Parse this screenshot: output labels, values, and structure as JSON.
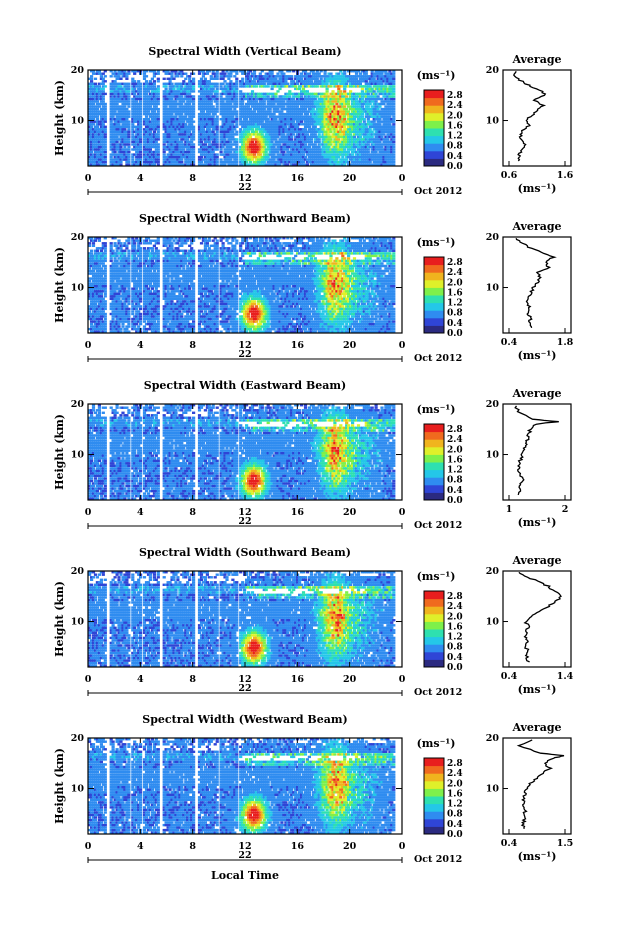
{
  "figure": {
    "x_axis_label": "Local Time",
    "date_label": "Oct 2012",
    "day_label": "22",
    "x_ticks": [
      "0",
      "4",
      "8",
      "12",
      "16",
      "20",
      "0"
    ],
    "y_label": "Height (km)",
    "y_ticks": [
      "20",
      "10"
    ],
    "units": "(ms⁻¹)",
    "colorbar_ticks": [
      "2.8",
      "2.4",
      "2.0",
      "1.6",
      "1.2",
      "0.8",
      "0.4",
      "0.0"
    ],
    "colors": [
      "#2b2a80",
      "#2f45d6",
      "#2f8cf0",
      "#24c7e8",
      "#2ee0b0",
      "#7ef04a",
      "#dff02a",
      "#f0b41e",
      "#f06a1e",
      "#e81e1e"
    ]
  },
  "panels": [
    {
      "title": "Spectral Width (Vertical Beam)",
      "avg_title": "Average",
      "avg_xticks": [
        "0.6",
        "1.6"
      ],
      "avg_xlabel": "(ms⁻¹)",
      "avg_ylim_ticks": [
        "20",
        "10"
      ]
    },
    {
      "title": "Spectral Width (Northward Beam)",
      "avg_title": "Average",
      "avg_xticks": [
        "0.4",
        "1.8"
      ],
      "avg_xlabel": "(ms⁻¹)",
      "avg_ylim_ticks": [
        "20",
        "10"
      ]
    },
    {
      "title": "Spectral Width (Eastward Beam)",
      "avg_title": "Average",
      "avg_xticks": [
        "1",
        "2"
      ],
      "avg_xlabel": "(ms⁻¹)",
      "avg_ylim_ticks": [
        "20",
        "10"
      ]
    },
    {
      "title": "Spectral Width (Southward Beam)",
      "avg_title": "Average",
      "avg_xticks": [
        "0.4",
        "1.4"
      ],
      "avg_xlabel": "(ms⁻¹)",
      "avg_ylim_ticks": [
        "20",
        "10"
      ]
    },
    {
      "title": "Spectral Width (Westward Beam)",
      "avg_title": "Average",
      "avg_xticks": [
        "0.4",
        "1.5"
      ],
      "avg_xlabel": "(ms⁻¹)",
      "avg_ylim_ticks": [
        "20",
        "10"
      ]
    }
  ],
  "chart_data": [
    {
      "type": "heatmap",
      "title": "Spectral Width (Vertical Beam)",
      "xlabel": "Local Time",
      "ylabel": "Height (km)",
      "xlim": [
        0,
        24
      ],
      "ylim": [
        1,
        20
      ],
      "colorbar_range": [
        0.0,
        3.0
      ],
      "colorbar_label": "(ms⁻¹)"
    },
    {
      "type": "line",
      "title": "Average",
      "xlabel": "(ms⁻¹)",
      "xlim": [
        0.6,
        1.6
      ],
      "ylim": [
        1,
        20
      ],
      "x": [
        0.75,
        0.78,
        0.8,
        0.9,
        0.85,
        0.8,
        0.85,
        0.95,
        0.9,
        1.0,
        1.1,
        1.2,
        1.05,
        1.25,
        1.15,
        0.95,
        0.8,
        0.7,
        0.7
      ],
      "y": [
        2,
        3,
        4,
        5,
        6,
        7,
        8,
        9,
        10,
        11,
        12,
        13,
        14,
        15,
        16,
        17,
        18,
        19,
        20
      ]
    },
    {
      "type": "heatmap",
      "title": "Spectral Width (Northward Beam)",
      "xlabel": "Local Time",
      "ylabel": "Height (km)",
      "xlim": [
        0,
        24
      ],
      "ylim": [
        1,
        20
      ],
      "colorbar_range": [
        0.0,
        3.0
      ],
      "colorbar_label": "(ms⁻¹)"
    },
    {
      "type": "line",
      "title": "Average",
      "xlabel": "(ms⁻¹)",
      "xlim": [
        0.4,
        1.8
      ],
      "ylim": [
        1,
        20
      ],
      "x": [
        0.95,
        0.9,
        0.95,
        0.85,
        0.9,
        0.85,
        0.9,
        0.95,
        1.0,
        1.1,
        1.2,
        1.1,
        1.4,
        1.3,
        1.5,
        1.2,
        0.9,
        0.7,
        0.55
      ],
      "y": [
        2,
        3,
        4,
        5,
        6,
        7,
        8,
        9,
        10,
        11,
        12,
        13,
        14,
        15,
        16,
        17,
        18,
        19,
        20
      ]
    },
    {
      "type": "heatmap",
      "title": "Spectral Width (Eastward Beam)",
      "xlabel": "Local Time",
      "ylabel": "Height (km)",
      "xlim": [
        0,
        24
      ],
      "ylim": [
        1,
        20
      ],
      "colorbar_range": [
        0.0,
        3.0
      ],
      "colorbar_label": "(ms⁻¹)"
    },
    {
      "type": "line",
      "title": "Average",
      "xlabel": "(ms⁻¹)",
      "xlim": [
        0.5,
        2.2
      ],
      "ylim": [
        1,
        20
      ],
      "x": [
        0.8,
        0.85,
        0.8,
        0.9,
        0.85,
        0.8,
        0.8,
        0.85,
        0.9,
        0.95,
        1.0,
        1.05,
        1.1,
        1.15,
        1.3,
        2.0,
        1.2,
        0.8,
        0.65
      ],
      "y": [
        2,
        3,
        4,
        5,
        6,
        7,
        8,
        9,
        10,
        11,
        12,
        13,
        14,
        15,
        16,
        16.5,
        17,
        18.5,
        20
      ]
    },
    {
      "type": "heatmap",
      "title": "Spectral Width (Southward Beam)",
      "xlabel": "Local Time",
      "ylabel": "Height (km)",
      "xlim": [
        0,
        24
      ],
      "ylim": [
        1,
        20
      ],
      "colorbar_range": [
        0.0,
        3.0
      ],
      "colorbar_label": "(ms⁻¹)"
    },
    {
      "type": "line",
      "title": "Average",
      "xlabel": "(ms⁻¹)",
      "xlim": [
        0.4,
        1.4
      ],
      "ylim": [
        1,
        20
      ],
      "x": [
        0.75,
        0.72,
        0.75,
        0.7,
        0.72,
        0.7,
        0.72,
        0.75,
        0.7,
        0.78,
        0.95,
        1.1,
        1.25,
        1.35,
        1.2,
        1.1,
        0.9,
        0.7,
        0.5
      ],
      "y": [
        2,
        3,
        4,
        5,
        6,
        7,
        8,
        9,
        10,
        11,
        12,
        13,
        14,
        15,
        16,
        17,
        18,
        19,
        20
      ]
    },
    {
      "type": "heatmap",
      "title": "Spectral Width (Westward Beam)",
      "xlabel": "Local Time",
      "ylabel": "Height (km)",
      "xlim": [
        0,
        24
      ],
      "ylim": [
        1,
        20
      ],
      "colorbar_range": [
        0.0,
        3.0
      ],
      "colorbar_label": "(ms⁻¹)"
    },
    {
      "type": "line",
      "title": "Average",
      "xlabel": "(ms⁻¹)",
      "xlim": [
        0.4,
        1.5
      ],
      "ylim": [
        1,
        20
      ],
      "x": [
        0.7,
        0.68,
        0.7,
        0.72,
        0.7,
        0.68,
        0.7,
        0.72,
        0.75,
        0.8,
        0.95,
        1.05,
        1.2,
        1.1,
        1.25,
        1.5,
        1.0,
        0.6,
        0.9
      ],
      "y": [
        2,
        3,
        4,
        5,
        6,
        7,
        8,
        9,
        10,
        11,
        12,
        13,
        14,
        15,
        16,
        16.5,
        17,
        18.5,
        20
      ]
    }
  ]
}
